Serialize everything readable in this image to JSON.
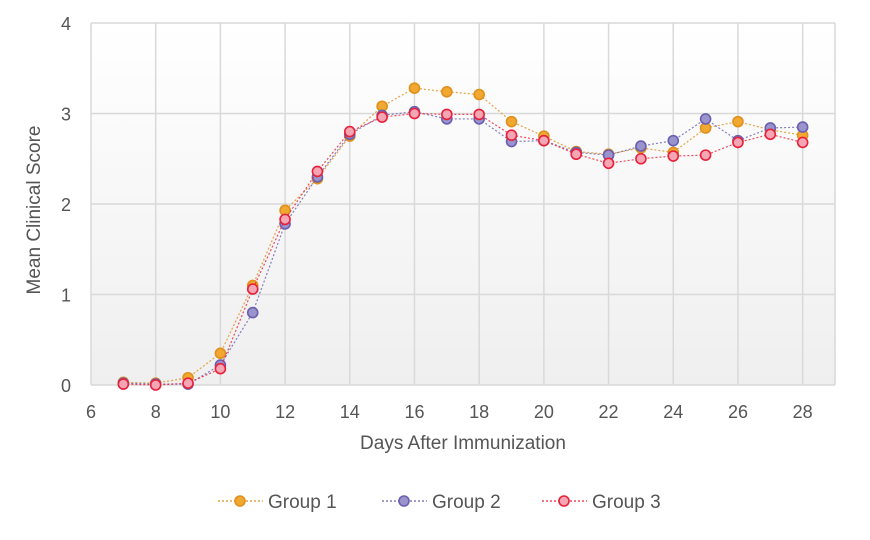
{
  "chart_data": {
    "type": "line",
    "title": "",
    "xlabel": "Days After Immunization",
    "ylabel": "Mean Clinical Score",
    "xlim": [
      6,
      29
    ],
    "ylim": [
      0,
      4
    ],
    "xticks": [
      6,
      8,
      10,
      12,
      14,
      16,
      18,
      20,
      22,
      24,
      26,
      28
    ],
    "yticks": [
      0,
      1,
      2,
      3,
      4
    ],
    "grid": true,
    "legend_position": "bottom",
    "x": [
      7,
      8,
      9,
      10,
      11,
      12,
      13,
      14,
      15,
      16,
      17,
      18,
      19,
      20,
      21,
      22,
      23,
      24,
      25,
      26,
      27,
      28
    ],
    "series": [
      {
        "name": "Group 1",
        "color": "#f0a830",
        "edge": "#e0901c",
        "values": [
          0.03,
          0.02,
          0.08,
          0.35,
          1.1,
          1.93,
          2.28,
          2.75,
          3.08,
          3.28,
          3.24,
          3.21,
          2.91,
          2.75,
          2.58,
          2.55,
          2.62,
          2.57,
          2.84,
          2.91,
          2.82,
          2.76
        ]
      },
      {
        "name": "Group 2",
        "color": "#9a94cc",
        "edge": "#6a5fb0",
        "values": [
          0.02,
          0.01,
          0.01,
          0.22,
          0.8,
          1.78,
          2.3,
          2.77,
          2.98,
          3.02,
          2.94,
          2.94,
          2.69,
          2.7,
          2.57,
          2.54,
          2.64,
          2.7,
          2.94,
          2.7,
          2.84,
          2.85
        ]
      },
      {
        "name": "Group 3",
        "color": "#f4a6b4",
        "edge": "#e8203a",
        "values": [
          0.01,
          0.0,
          0.02,
          0.18,
          1.06,
          1.83,
          2.36,
          2.8,
          2.96,
          3.0,
          2.99,
          2.99,
          2.76,
          2.7,
          2.55,
          2.45,
          2.5,
          2.53,
          2.54,
          2.68,
          2.77,
          2.68
        ]
      }
    ]
  }
}
